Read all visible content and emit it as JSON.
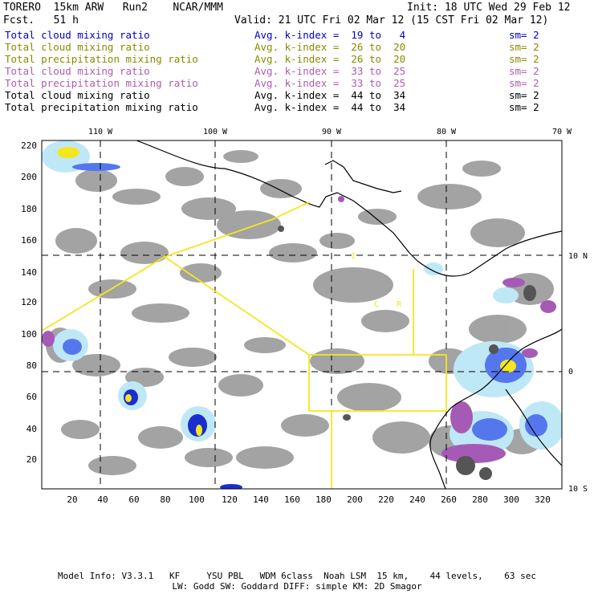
{
  "header": {
    "model": "TORERO  15km ARW   Run2    NCAR/MMM",
    "init": "Init: 18 UTC Wed 29 Feb 12",
    "fcst": "Fcst.   51 h",
    "valid": "Valid: 21 UTC Fri 02 Mar 12 (15 CST Fri 02 Mar 12)"
  },
  "legend": [
    {
      "name": "Total cloud mixing ratio",
      "kindex": "Avg. k-index =  19 to   4",
      "sm": "sm= 2",
      "color": "#0000cc"
    },
    {
      "name": "Total cloud mixing ratio",
      "kindex": "Avg. k-index =  26 to  20",
      "sm": "sm= 2",
      "color": "#8a8a00"
    },
    {
      "name": "Total precipitation mixing ratio",
      "kindex": "Avg. k-index =  26 to  20",
      "sm": "sm= 2",
      "color": "#8a8a00"
    },
    {
      "name": "Total cloud mixing ratio",
      "kindex": "Avg. k-index =  33 to  25",
      "sm": "sm= 2",
      "color": "#b05ab0"
    },
    {
      "name": "Total precipitation mixing ratio",
      "kindex": "Avg. k-index =  33 to  25",
      "sm": "sm= 2",
      "color": "#b05ab0"
    },
    {
      "name": "Total cloud mixing ratio",
      "kindex": "Avg. k-index =  44 to  34",
      "sm": "sm= 2",
      "color": "#000000"
    },
    {
      "name": "Total precipitation mixing ratio",
      "kindex": "Avg. k-index =  44 to  34",
      "sm": "sm= 2",
      "color": "#000000"
    }
  ],
  "map": {
    "lon_labels": [
      "110 W",
      "100 W",
      "90 W",
      "80 W",
      "70 W"
    ],
    "lat_labels": [
      "10 N",
      "0",
      "10 S"
    ],
    "y_ticks": [
      "220",
      "200",
      "180",
      "160",
      "140",
      "120",
      "100",
      "80",
      "60",
      "40",
      "20"
    ],
    "x_ticks": [
      "20",
      "40",
      "60",
      "80",
      "100",
      "120",
      "140",
      "160",
      "180",
      "200",
      "220",
      "240",
      "260",
      "280",
      "300",
      "320"
    ],
    "region_labels": [
      "I",
      "C",
      "R"
    ],
    "colors": {
      "cloud_gray": "#9a9a9a",
      "blue_light": "#bfe8f7",
      "blue_mid": "#5577ee",
      "blue_dark": "#1a2ed0",
      "yellow": "#f5e61e",
      "purple": "#a55bb5",
      "box_line": "#f5e61e",
      "coast": "#000000"
    }
  },
  "footer": {
    "line1": "Model Info: V3.3.1   KF     YSU PBL   WDM 6class  Noah LSM  15 km,    44 levels,    63 sec",
    "line2": "LW: Godd SW: Goddard DIFF: simple KM: 2D Smagor"
  }
}
